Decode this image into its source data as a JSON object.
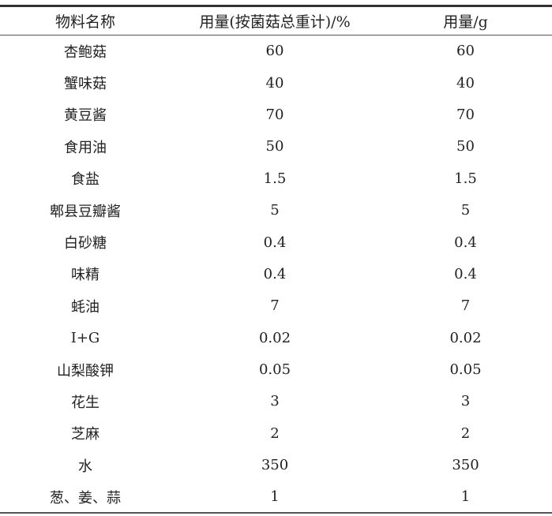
{
  "headers": [
    "物料名称",
    "用量(按菌菇总重计)/%",
    "用量/g"
  ],
  "rows": [
    [
      "杏鲍菇",
      "60",
      "60"
    ],
    [
      "蟹味菇",
      "40",
      "40"
    ],
    [
      "黄豆酱",
      "70",
      "70"
    ],
    [
      "食用油",
      "50",
      "50"
    ],
    [
      "食盐",
      "1.5",
      "1.5"
    ],
    [
      "郫县豆瓣酱",
      "5",
      "5"
    ],
    [
      "白砂糖",
      "0.4",
      "0.4"
    ],
    [
      "味精",
      "0.4",
      "0.4"
    ],
    [
      "蚝油",
      "7",
      "7"
    ],
    [
      "I+G",
      "0.02",
      "0.02"
    ],
    [
      "山梨酸钾",
      "0.05",
      "0.05"
    ],
    [
      "花生",
      "3",
      "3"
    ],
    [
      "芝麻",
      "2",
      "2"
    ],
    [
      "水",
      "350",
      "350"
    ],
    [
      "葱、姜、蒜",
      "1",
      "1"
    ]
  ]
}
